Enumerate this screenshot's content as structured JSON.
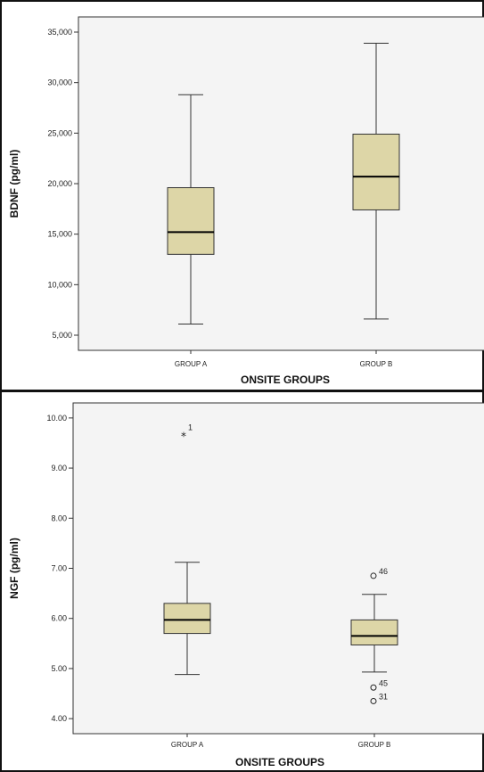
{
  "colors": {
    "plot_bg": "#f4f4f4",
    "box_fill": "#ddd6a7",
    "box_stroke": "#333333",
    "median": "#000000"
  },
  "chart_data": [
    {
      "type": "boxplot",
      "xlabel": "ONSITE GROUPS",
      "ylabel": "BDNF (pg/ml)",
      "ylim": [
        3500,
        36500
      ],
      "yticks": [
        5000,
        10000,
        15000,
        20000,
        25000,
        30000,
        35000
      ],
      "ytick_labels": [
        "5,000",
        "10,000",
        "15,000",
        "20,000",
        "25,000",
        "30,000",
        "35,000"
      ],
      "categories": [
        "GROUP A",
        "GROUP B"
      ],
      "boxes": [
        {
          "whisker_low": 6100,
          "q1": 13000,
          "median": 15200,
          "q3": 19600,
          "whisker_high": 28800,
          "outliers": []
        },
        {
          "whisker_low": 6600,
          "q1": 17400,
          "median": 20700,
          "q3": 24900,
          "whisker_high": 33900,
          "outliers": []
        }
      ]
    },
    {
      "type": "boxplot",
      "xlabel": "ONSITE GROUPS",
      "ylabel": "NGF (pg/ml)",
      "ylim": [
        3.7,
        10.3
      ],
      "yticks": [
        4,
        5,
        6,
        7,
        8,
        9,
        10
      ],
      "ytick_labels": [
        "4.00",
        "5.00",
        "6.00",
        "7.00",
        "8.00",
        "9.00",
        "10.00"
      ],
      "categories": [
        "GROUP A",
        "GROUP B"
      ],
      "boxes": [
        {
          "whisker_low": 4.88,
          "q1": 5.7,
          "median": 5.97,
          "q3": 6.3,
          "whisker_high": 7.12,
          "outliers": [
            {
              "value": 9.67,
              "label": "1",
              "marker": "star"
            }
          ]
        },
        {
          "whisker_low": 4.93,
          "q1": 5.47,
          "median": 5.65,
          "q3": 5.97,
          "whisker_high": 6.48,
          "outliers": [
            {
              "value": 6.85,
              "label": "46",
              "marker": "circle"
            },
            {
              "value": 4.62,
              "label": "45",
              "marker": "circle"
            },
            {
              "value": 4.35,
              "label": "31",
              "marker": "circle"
            }
          ]
        }
      ]
    }
  ]
}
